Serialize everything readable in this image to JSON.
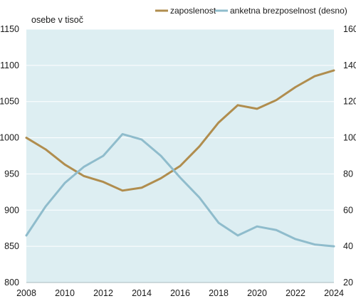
{
  "chart_data": {
    "type": "line",
    "unit_label": "osebe v tisoč",
    "x": [
      2008,
      2009,
      2010,
      2011,
      2012,
      2013,
      2014,
      2015,
      2016,
      2017,
      2018,
      2019,
      2020,
      2021,
      2022,
      2023,
      2024
    ],
    "x_ticks": [
      "2008",
      "2010",
      "2012",
      "2014",
      "2016",
      "2018",
      "2020",
      "2022",
      "2024"
    ],
    "xlim": [
      2008,
      2024
    ],
    "y_left": {
      "ylim": [
        800,
        1150
      ],
      "ticks": [
        "800",
        "850",
        "900",
        "950",
        "1000",
        "1050",
        "1100",
        "1150"
      ]
    },
    "y_right": {
      "ylim": [
        20,
        160
      ],
      "ticks": [
        "20",
        "40",
        "60",
        "80",
        "100",
        "120",
        "140",
        "160"
      ]
    },
    "grid": true,
    "legend_position": "top-right",
    "background": "#ddeef2",
    "series": [
      {
        "name": "zaposlenost",
        "axis": "left",
        "color": "#b08d4e",
        "values": [
          1000,
          984,
          963,
          947,
          939,
          927,
          931,
          944,
          961,
          988,
          1021,
          1045,
          1040,
          1052,
          1070,
          1085,
          1093
        ]
      },
      {
        "name": "anketna brezposelnost (desno)",
        "axis": "right",
        "color": "#8fbccc",
        "values": [
          46,
          62,
          75,
          84,
          90,
          102,
          99,
          90,
          78,
          67,
          53,
          46,
          51,
          49,
          44,
          41,
          40
        ]
      }
    ]
  }
}
